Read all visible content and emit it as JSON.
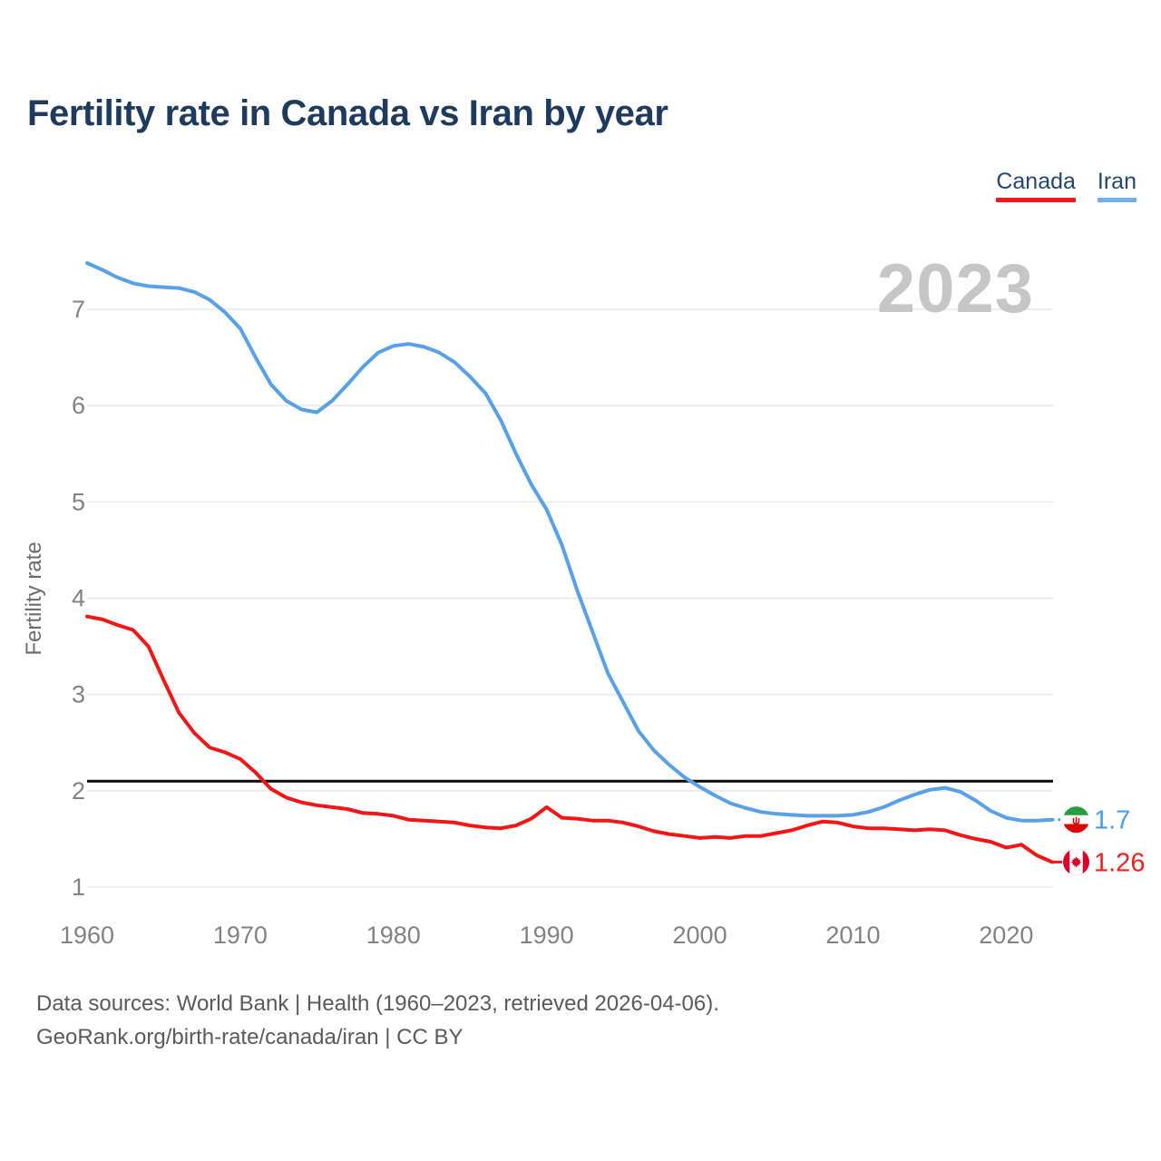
{
  "header": {
    "title": "Fertility rate in Canada vs Iran by year"
  },
  "legend": [
    {
      "label": "Canada",
      "color": "#f21616"
    },
    {
      "label": "Iran",
      "color": "#6fb0ec"
    }
  ],
  "watermark": "2023",
  "icons": {
    "canada_end": "canada-flag-icon",
    "iran_end": "iran-flag-icon"
  },
  "footer": {
    "line1": "Data sources: World Bank | Health (1960–2023, retrieved 2026-04-06).",
    "line2": "GeoRank.org/birth-rate/canada/iran | CC BY"
  },
  "chart_data": {
    "type": "line",
    "title": "Fertility rate in Canada vs Iran by year",
    "xlabel": "",
    "ylabel": "Fertility rate",
    "xlim": [
      1960,
      2023
    ],
    "ylim": [
      1,
      7.6
    ],
    "x_ticks": [
      1960,
      1970,
      1980,
      1990,
      2000,
      2010,
      2020
    ],
    "y_ticks": [
      1,
      2,
      3,
      4,
      5,
      6,
      7
    ],
    "grid": true,
    "legend_position": "top-right",
    "reference_line": {
      "value": 2.1,
      "color": "#0a0a0a"
    },
    "years": [
      1960,
      1961,
      1962,
      1963,
      1964,
      1965,
      1966,
      1967,
      1968,
      1969,
      1970,
      1971,
      1972,
      1973,
      1974,
      1975,
      1976,
      1977,
      1978,
      1979,
      1980,
      1981,
      1982,
      1983,
      1984,
      1985,
      1986,
      1987,
      1988,
      1989,
      1990,
      1991,
      1992,
      1993,
      1994,
      1995,
      1996,
      1997,
      1998,
      1999,
      2000,
      2001,
      2002,
      2003,
      2004,
      2005,
      2006,
      2007,
      2008,
      2009,
      2010,
      2011,
      2012,
      2013,
      2014,
      2015,
      2016,
      2017,
      2018,
      2019,
      2020,
      2021,
      2022,
      2023
    ],
    "series": [
      {
        "name": "Canada",
        "color": "#f21616",
        "label_color": "#ee2222",
        "end_label": "1.26",
        "end_value": 1.26,
        "flag": "canada",
        "values": [
          3.81,
          3.78,
          3.72,
          3.67,
          3.5,
          3.15,
          2.81,
          2.6,
          2.45,
          2.4,
          2.33,
          2.19,
          2.02,
          1.93,
          1.88,
          1.85,
          1.83,
          1.81,
          1.77,
          1.76,
          1.74,
          1.7,
          1.69,
          1.68,
          1.67,
          1.64,
          1.62,
          1.61,
          1.64,
          1.71,
          1.83,
          1.72,
          1.71,
          1.69,
          1.69,
          1.67,
          1.63,
          1.58,
          1.55,
          1.53,
          1.51,
          1.52,
          1.51,
          1.53,
          1.53,
          1.56,
          1.59,
          1.64,
          1.68,
          1.67,
          1.63,
          1.61,
          1.61,
          1.6,
          1.59,
          1.6,
          1.59,
          1.54,
          1.5,
          1.47,
          1.41,
          1.44,
          1.33,
          1.26
        ]
      },
      {
        "name": "Iran",
        "color": "#58a0e8",
        "label_color": "#4a9de8",
        "end_label": "1.7",
        "end_value": 1.7,
        "flag": "iran",
        "values": [
          7.48,
          7.41,
          7.33,
          7.27,
          7.24,
          7.23,
          7.22,
          7.18,
          7.1,
          6.97,
          6.8,
          6.5,
          6.22,
          6.05,
          5.96,
          5.93,
          6.05,
          6.22,
          6.4,
          6.55,
          6.62,
          6.64,
          6.61,
          6.55,
          6.45,
          6.3,
          6.13,
          5.85,
          5.5,
          5.18,
          4.92,
          4.55,
          4.08,
          3.65,
          3.22,
          2.92,
          2.62,
          2.42,
          2.27,
          2.14,
          2.04,
          1.95,
          1.87,
          1.82,
          1.78,
          1.76,
          1.75,
          1.74,
          1.74,
          1.74,
          1.75,
          1.78,
          1.83,
          1.9,
          1.96,
          2.01,
          2.03,
          1.99,
          1.9,
          1.79,
          1.72,
          1.69,
          1.69,
          1.7
        ]
      }
    ]
  }
}
